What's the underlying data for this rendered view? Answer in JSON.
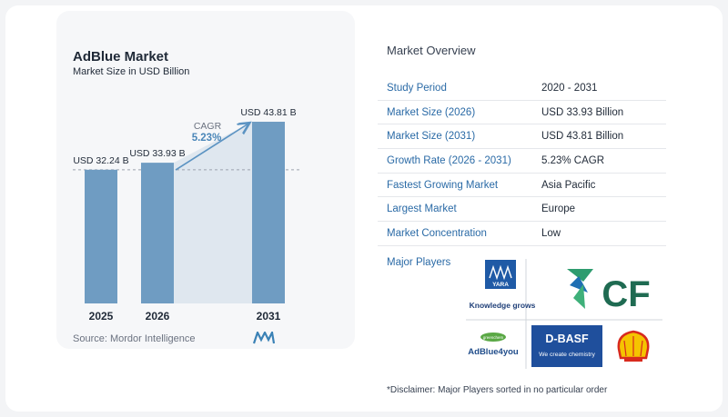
{
  "chart": {
    "title": "AdBlue Market",
    "subtitle": "Market Size in USD Billion",
    "source": "Source:  Mordor Intelligence",
    "cagr_label": "CAGR",
    "cagr_value": "5.23%"
  },
  "chart_data": {
    "type": "bar",
    "title": "AdBlue Market",
    "subtitle": "Market Size in USD Billion",
    "categories": [
      "2025",
      "2026",
      "2031"
    ],
    "values": [
      32.24,
      33.93,
      43.81
    ],
    "data_labels": [
      "USD 32.24 B",
      "USD 33.93 B",
      "USD 43.81 B"
    ],
    "annotation": "CAGR 5.23%",
    "grid": false,
    "colors": {
      "bar": "#6f9cc2",
      "bar_light": "#dfe7ef",
      "arrow": "#5b93c2",
      "cagr": "#4a86b8"
    }
  },
  "overview": {
    "title": "Market Overview",
    "rows": [
      {
        "label": "Study Period",
        "value": "2020 - 2031"
      },
      {
        "label": "Market Size (2026)",
        "value": "USD 33.93 Billion"
      },
      {
        "label": "Market Size (2031)",
        "value": "USD 43.81 Billion"
      },
      {
        "label": "Growth Rate (2026 - 2031)",
        "value": "5.23% CAGR"
      },
      {
        "label": "Fastest Growing Market",
        "value": "Asia Pacific"
      },
      {
        "label": "Largest Market",
        "value": "Europe"
      },
      {
        "label": "Market Concentration",
        "value": "Low"
      }
    ]
  },
  "players": {
    "label": "Major Players",
    "logos": [
      {
        "name": "Yara",
        "text": "YARA",
        "tagline": "Knowledge grows"
      },
      {
        "name": "CF Industries",
        "text": "CF"
      },
      {
        "name": "AdBlue4you",
        "text": "AdBlue4you",
        "small": "greenchem"
      },
      {
        "name": "BASF",
        "text": "D-BASF",
        "tagline": "We create chemistry"
      },
      {
        "name": "Shell",
        "icon": "shell-pecten-icon"
      }
    ],
    "disclaimer": "*Disclaimer: Major Players sorted in no particular order"
  }
}
